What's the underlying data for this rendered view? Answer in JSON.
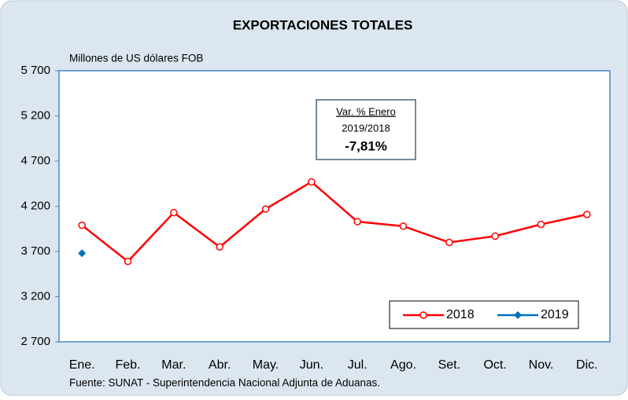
{
  "chart_data": {
    "type": "line",
    "title": "EXPORTACIONES TOTALES",
    "y_axis_label": "Millones de US dólares FOB",
    "source": "Fuente: SUNAT - Superintendencia Nacional Adjunta de Aduanas.",
    "annotation": {
      "heading": "Var. % Enero",
      "period": "2019/2018",
      "value": "-7,81%"
    },
    "categories": [
      "Ene.",
      "Feb.",
      "Mar.",
      "Abr.",
      "May.",
      "Jun.",
      "Jul.",
      "Ago.",
      "Set.",
      "Oct.",
      "Nov.",
      "Dic."
    ],
    "series": [
      {
        "name": "2018",
        "color": "#ff0000",
        "marker": "circle",
        "values": [
          3990,
          3590,
          4130,
          3750,
          4170,
          4470,
          4030,
          3980,
          3800,
          3870,
          4000,
          4110
        ]
      },
      {
        "name": "2019",
        "color": "#0070c0",
        "marker": "diamond",
        "values": [
          3680,
          null,
          null,
          null,
          null,
          null,
          null,
          null,
          null,
          null,
          null,
          null
        ]
      }
    ],
    "ylim": [
      2700,
      5700
    ],
    "yticks": [
      {
        "value": 2700,
        "label": "2 700"
      },
      {
        "value": 3200,
        "label": "3 200"
      },
      {
        "value": 3700,
        "label": "3 700"
      },
      {
        "value": 4200,
        "label": "4 200"
      },
      {
        "value": 4700,
        "label": "4 700"
      },
      {
        "value": 5200,
        "label": "5 200"
      },
      {
        "value": 5700,
        "label": "5 700"
      }
    ],
    "grid": false,
    "legend": "lower right"
  }
}
